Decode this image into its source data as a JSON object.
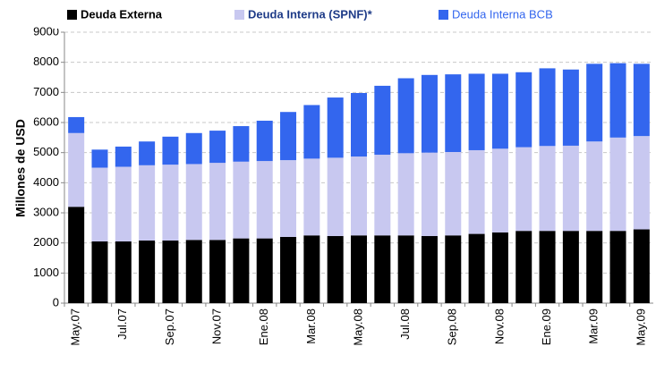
{
  "chart_data": {
    "type": "stacked_bar",
    "y_label": "Millones de USD",
    "categories": [
      "May.07",
      null,
      "Jul.07",
      null,
      "Sep.07",
      null,
      "Nov.07",
      null,
      "Ene.08",
      null,
      "Mar.08",
      null,
      "May.08",
      null,
      "Jul.08",
      null,
      "Sep.08",
      null,
      "Nov.08",
      null,
      "Ene.09",
      null,
      "Mar.09",
      null,
      "May.09"
    ],
    "series": [
      {
        "name": "Deuda Externa",
        "color": "#000000",
        "values": [
          3200,
          2050,
          2050,
          2080,
          2080,
          2100,
          2100,
          2150,
          2150,
          2200,
          2250,
          2230,
          2250,
          2250,
          2250,
          2230,
          2250,
          2300,
          2350,
          2400,
          2400,
          2400,
          2400,
          2400,
          2450
        ]
      },
      {
        "name": "Deuda Interna (SPNF)*",
        "color": "#c8c8f0",
        "values": [
          2450,
          2450,
          2480,
          2500,
          2520,
          2520,
          2560,
          2550,
          2570,
          2550,
          2550,
          2600,
          2620,
          2680,
          2730,
          2770,
          2770,
          2780,
          2780,
          2780,
          2820,
          2830,
          2970,
          3100,
          3100
        ]
      },
      {
        "name": "Deuda Interna BCB",
        "color": "#3366ee",
        "values": [
          530,
          600,
          670,
          790,
          930,
          1030,
          1070,
          1180,
          1340,
          1600,
          1780,
          2000,
          2110,
          2290,
          2490,
          2580,
          2580,
          2540,
          2490,
          2490,
          2580,
          2530,
          2580,
          2470,
          2400
        ]
      }
    ],
    "ylim": [
      0,
      9000
    ],
    "yticks": [
      0,
      1000,
      2000,
      3000,
      4000,
      5000,
      6000,
      7000,
      8000,
      9000
    ],
    "grid": true
  }
}
